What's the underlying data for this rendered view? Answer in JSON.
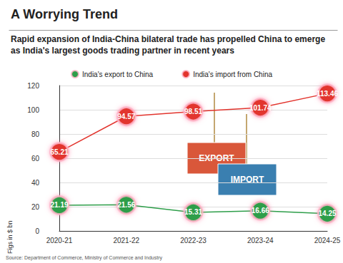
{
  "chart_data": {
    "type": "line",
    "title": "A Worrying Trend",
    "subtitle": "Rapid expansion of India-China bilateral trade has propelled China to emerge as India's largest goods trading partner in recent years",
    "y_label": "Figs in $ bn",
    "source": "Source: Department of Commerce, Ministry of Commerce and Industry",
    "annotations": [
      "EXPORT",
      "IMPORT"
    ],
    "categories": [
      "2020-21",
      "2021-22",
      "2022-23",
      "2023-24",
      "2024-25"
    ],
    "series": [
      {
        "name": "India's export to China",
        "color": "#2e9e4a",
        "values": [
          21.19,
          21.56,
          15.31,
          16.66,
          14.25
        ]
      },
      {
        "name": "India's import from China",
        "color": "#e2342d",
        "values": [
          65.21,
          94.57,
          98.51,
          101.74,
          113.46
        ]
      }
    ],
    "ylim": [
      0,
      120
    ],
    "yticks": [
      0,
      20,
      40,
      60,
      80,
      100,
      120
    ],
    "grid": true,
    "legend": "top",
    "data_labels": true,
    "marker": "circle"
  }
}
